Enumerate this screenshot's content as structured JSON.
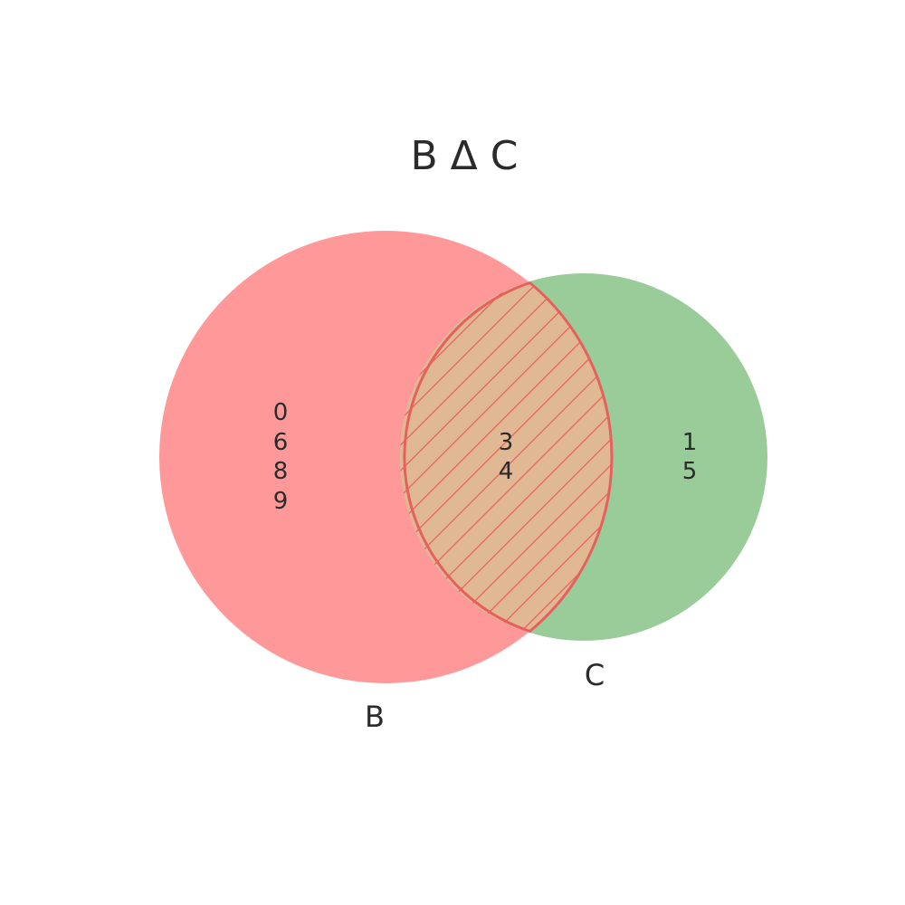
{
  "title": "B Δ C",
  "sets": {
    "b": {
      "label": "B",
      "color": "#ff9999",
      "only_elements": [
        "0",
        "6",
        "8",
        "9"
      ]
    },
    "c": {
      "label": "C",
      "color": "#99cc99",
      "only_elements": [
        "1",
        "5"
      ]
    }
  },
  "intersection": {
    "fill_color": "#e0b994",
    "hatch_color": "#e8605c",
    "elements": [
      "3",
      "4"
    ]
  }
}
